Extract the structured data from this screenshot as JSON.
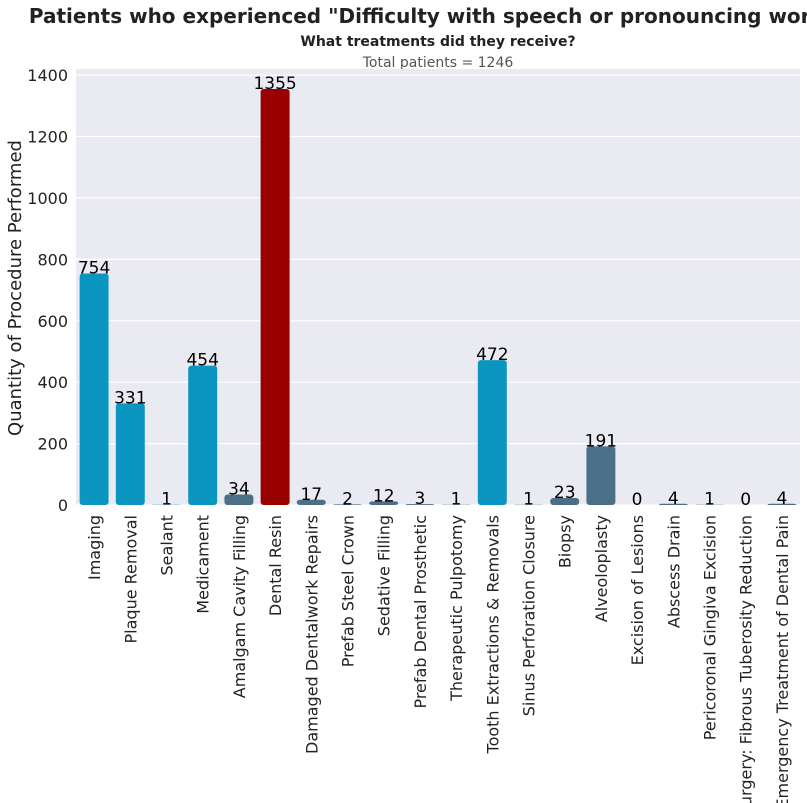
{
  "chart_data": {
    "type": "bar",
    "title": "Patients who experienced \"Difficulty with speech or pronouncing words\"",
    "subtitle": "What treatments did they receive?",
    "note": "Total patients = 1246",
    "xlabel": "",
    "ylabel": "Quantity of Procedure Performed",
    "ylim": [
      0,
      1420
    ],
    "yticks": [
      0,
      200,
      400,
      600,
      800,
      1000,
      1200,
      1400
    ],
    "grid": true,
    "background": "#eaeaf2",
    "categories": [
      "Imaging",
      "Plaque Removal",
      "Sealant",
      "Medicament",
      "Amalgam Cavity Filling",
      "Dental Resin",
      "Damaged Dentalwork Repairs",
      "Prefab Steel Crown",
      "Sedative Filling",
      "Prefab Dental Prosthetic",
      "Therapeutic Pulpotomy",
      "Tooth Extractions & Removals",
      "Sinus Perforation Closure",
      "Biopsy",
      "Alveoloplasty",
      "Excision of Lesions",
      "Abscess Drain",
      "Pericoronal Gingiva Excision",
      "Surgery: Fibrous Tuberosity Reduction",
      "Emergency Treatment of Dental Pain"
    ],
    "values": [
      754,
      331,
      1,
      454,
      34,
      1355,
      17,
      2,
      12,
      3,
      1,
      472,
      1,
      23,
      191,
      0,
      4,
      1,
      0,
      4
    ],
    "colors": [
      "#0b96c1",
      "#0b96c1",
      "#0b96c1",
      "#0b96c1",
      "#4a6f86",
      "#990000",
      "#4a6f86",
      "#4a6f86",
      "#4a6f86",
      "#4a6f86",
      "#4a6f86",
      "#0b96c1",
      "#4a6f86",
      "#4a6f86",
      "#4a6f86",
      "#4a6f86",
      "#4a6f86",
      "#4a6f86",
      "#4a6f86",
      "#4a6f86"
    ]
  }
}
